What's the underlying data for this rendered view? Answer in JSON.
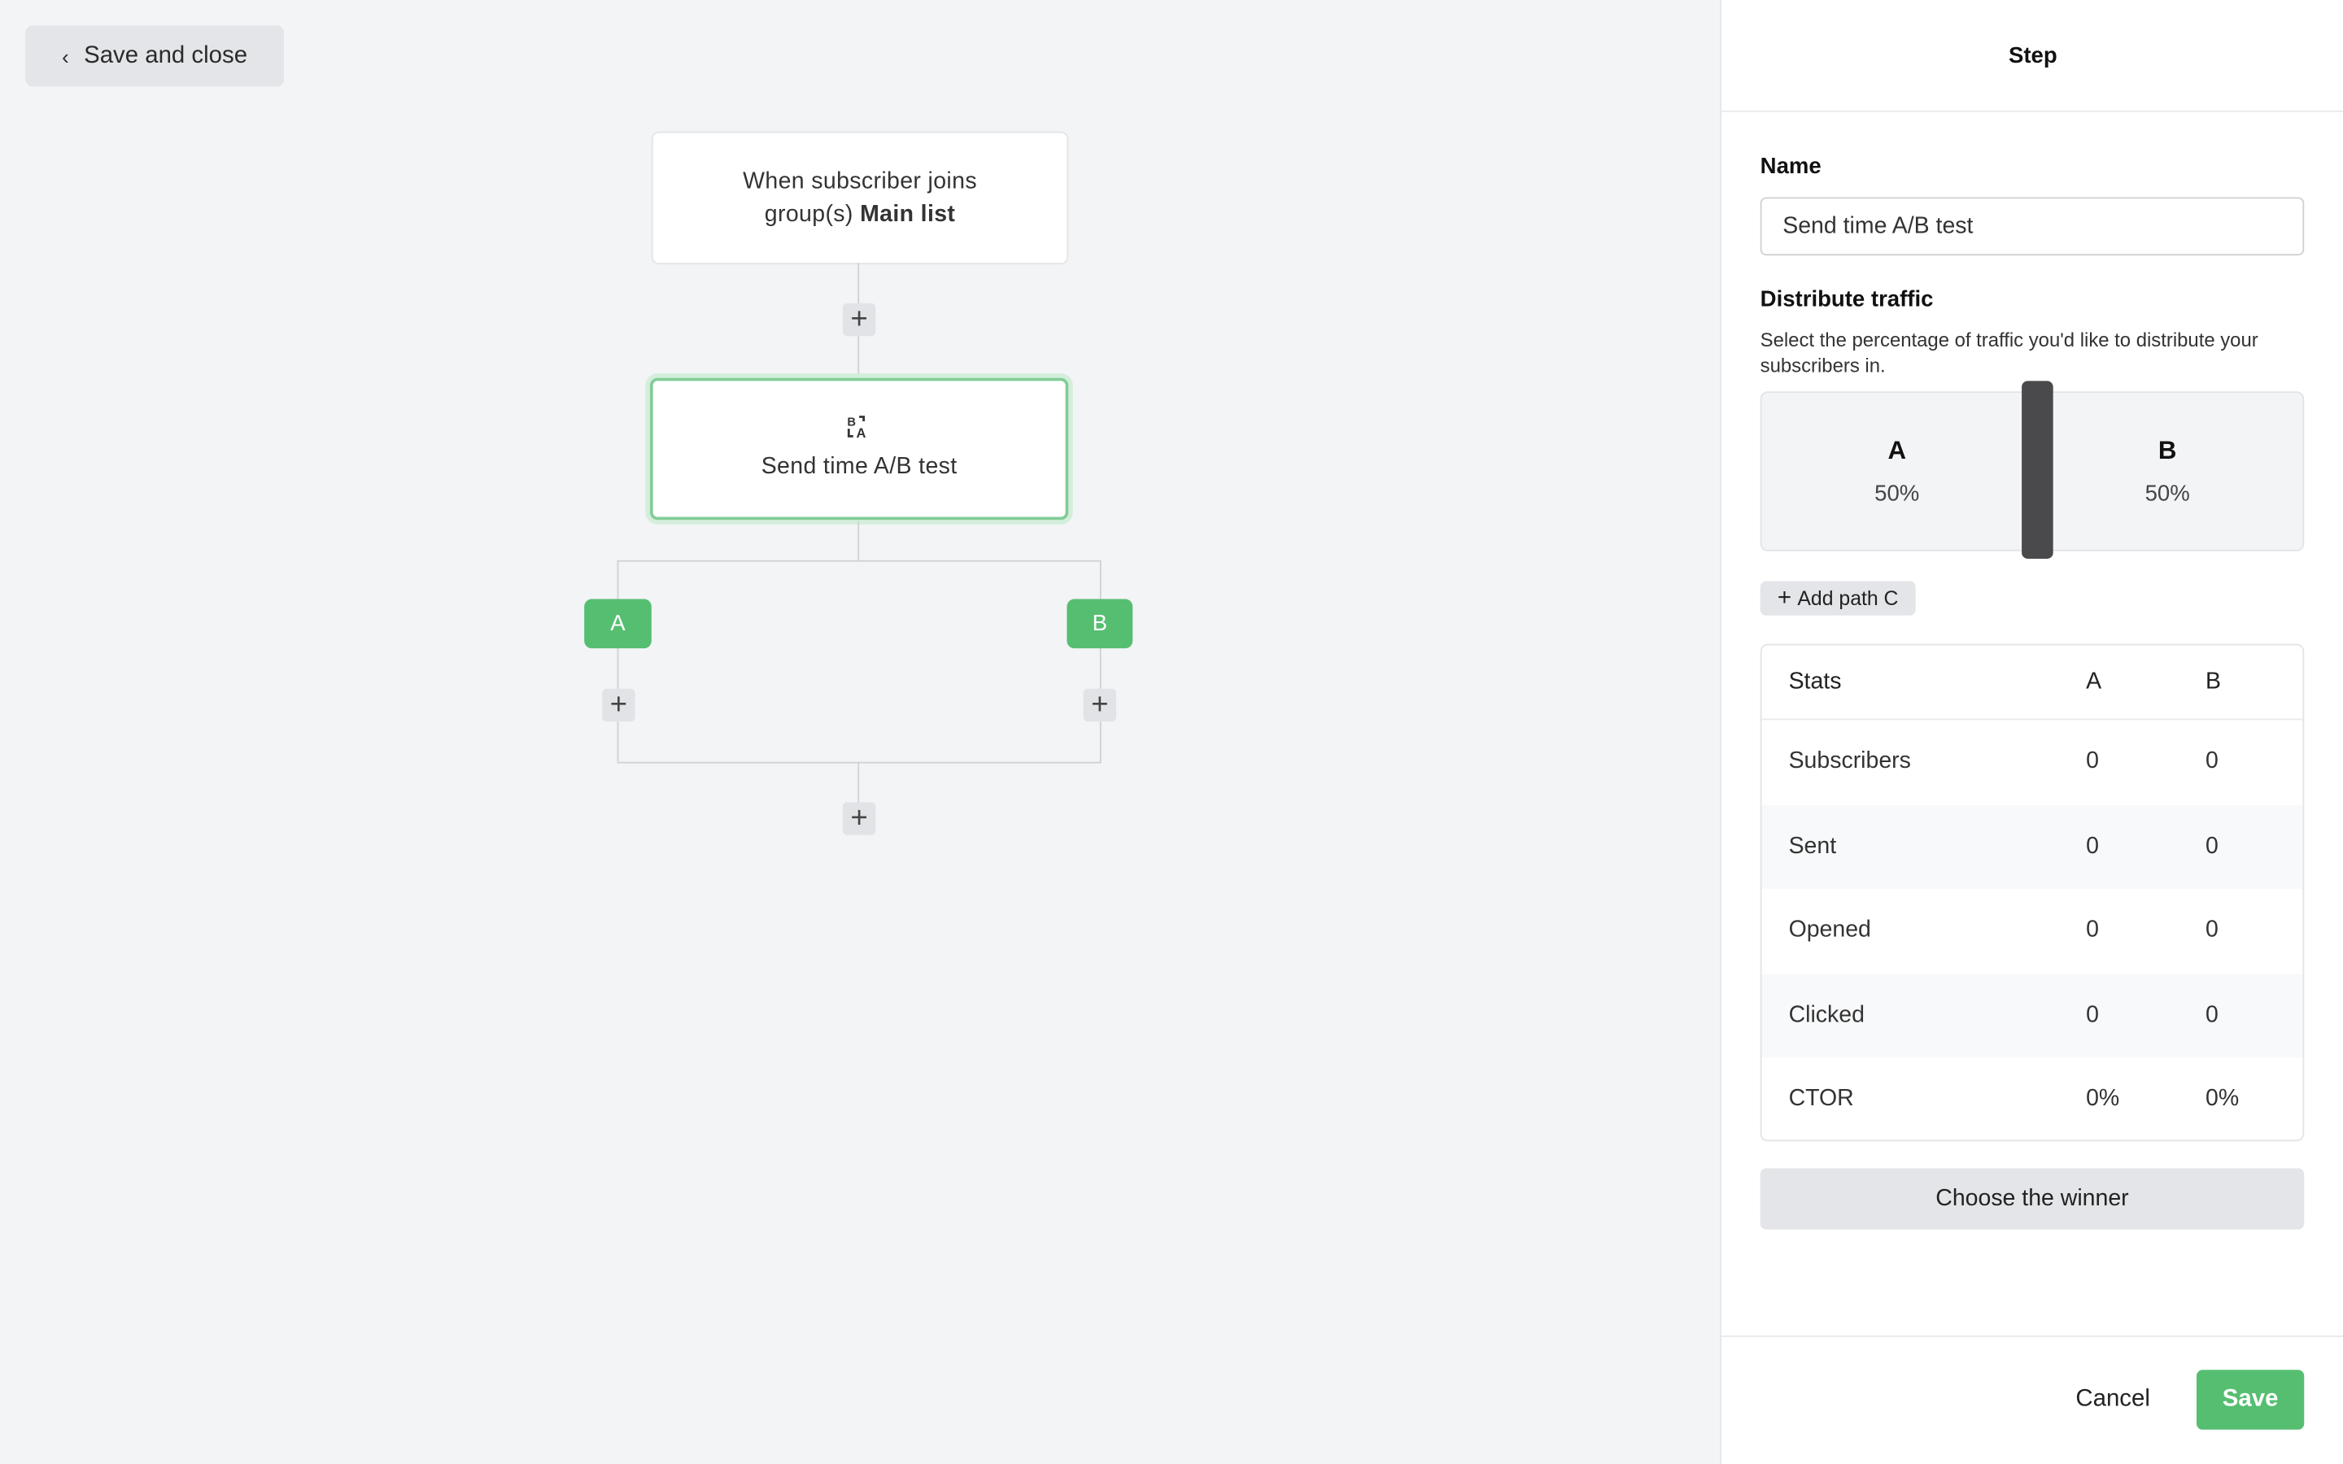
{
  "toolbar": {
    "back_label": "Save and close"
  },
  "flow": {
    "trigger": {
      "text": "When subscriber joins group(s)",
      "group": "Main list"
    },
    "step": {
      "icon": "ab-test-icon",
      "title": "Send time A/B test"
    },
    "branches": [
      "A",
      "B"
    ],
    "accent": "#56be71"
  },
  "panel": {
    "title": "Step",
    "name_label": "Name",
    "name_value": "Send time A/B test",
    "distribute_label": "Distribute traffic",
    "distribute_desc": "Select the percentage of traffic you'd like to distribute your subscribers in.",
    "split": [
      {
        "label": "A",
        "percent": "50%"
      },
      {
        "label": "B",
        "percent": "50%"
      }
    ],
    "split_value": 50,
    "add_path_label": "Add path C",
    "stats": {
      "headers": [
        "Stats",
        "A",
        "B"
      ],
      "rows": [
        [
          "Subscribers",
          "0",
          "0"
        ],
        [
          "Sent",
          "0",
          "0"
        ],
        [
          "Opened",
          "0",
          "0"
        ],
        [
          "Clicked",
          "0",
          "0"
        ],
        [
          "CTOR",
          "0%",
          "0%"
        ]
      ]
    },
    "choose_winner_label": "Choose the winner",
    "cancel_label": "Cancel",
    "save_label": "Save"
  }
}
